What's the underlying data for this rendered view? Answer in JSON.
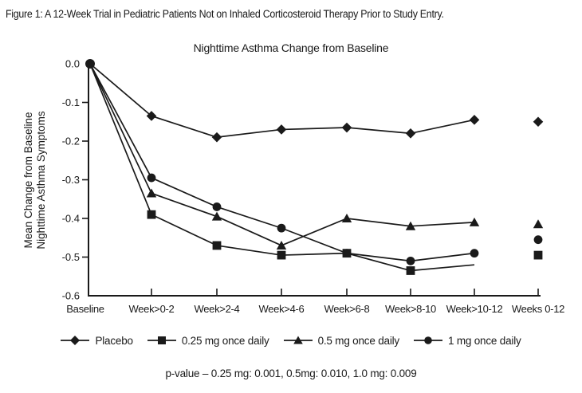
{
  "figure": {
    "caption": "Figure 1: A 12-Week Trial in Pediatric Patients Not on Inhaled Corticosteroid Therapy Prior to Study Entry."
  },
  "chart_data": {
    "type": "line",
    "title": "Nighttime Asthma Change from Baseline",
    "ylabel_lines": [
      "Mean Change from Baseline",
      "Nighttime Asthma Symptoms"
    ],
    "xlabel": "",
    "ylim": [
      -0.6,
      0.0
    ],
    "ytick_labels": [
      "0.0",
      "-0.1",
      "-0.2",
      "-0.3",
      "-0.4",
      "-0.5",
      "-0.6"
    ],
    "grid": false,
    "categories": [
      "Baseline",
      "Week>0-2",
      "Week>2-4",
      "Week>4-6",
      "Week>6-8",
      "Week>8-10",
      "Week>10-12",
      "Weeks 0-12"
    ],
    "series": [
      {
        "name": "Placebo",
        "marker": "diamond",
        "values": [
          0.0,
          -0.135,
          -0.19,
          -0.17,
          -0.165,
          -0.18,
          -0.145,
          -0.15
        ]
      },
      {
        "name": "0.25 mg once daily",
        "marker": "square",
        "values": [
          0.0,
          -0.39,
          -0.47,
          -0.495,
          -0.49,
          -0.535,
          -0.52,
          -0.495
        ],
        "skip_marker_indexes": [
          6
        ]
      },
      {
        "name": "0.5 mg once daily",
        "marker": "triangle",
        "values": [
          0.0,
          -0.335,
          -0.395,
          -0.47,
          -0.4,
          -0.42,
          -0.41,
          -0.415
        ]
      },
      {
        "name": "1 mg once daily",
        "marker": "circle",
        "values": [
          0.0,
          -0.295,
          -0.37,
          -0.425,
          -0.49,
          -0.51,
          -0.49,
          -0.455
        ]
      }
    ],
    "last_category_is_standalone_points": true,
    "legend_position": "bottom"
  },
  "legend": {
    "items": [
      {
        "label": "Placebo",
        "marker": "diamond"
      },
      {
        "label": "0.25 mg once daily",
        "marker": "square"
      },
      {
        "label": "0.5 mg once daily",
        "marker": "triangle"
      },
      {
        "label": "1 mg once daily",
        "marker": "circle"
      }
    ]
  },
  "footnote": {
    "text": "p-value – 0.25 mg: 0.001, 0.5mg: 0.010, 1.0 mg: 0.009"
  },
  "colors": {
    "ink": "#1a1a1a",
    "background": "#ffffff"
  }
}
